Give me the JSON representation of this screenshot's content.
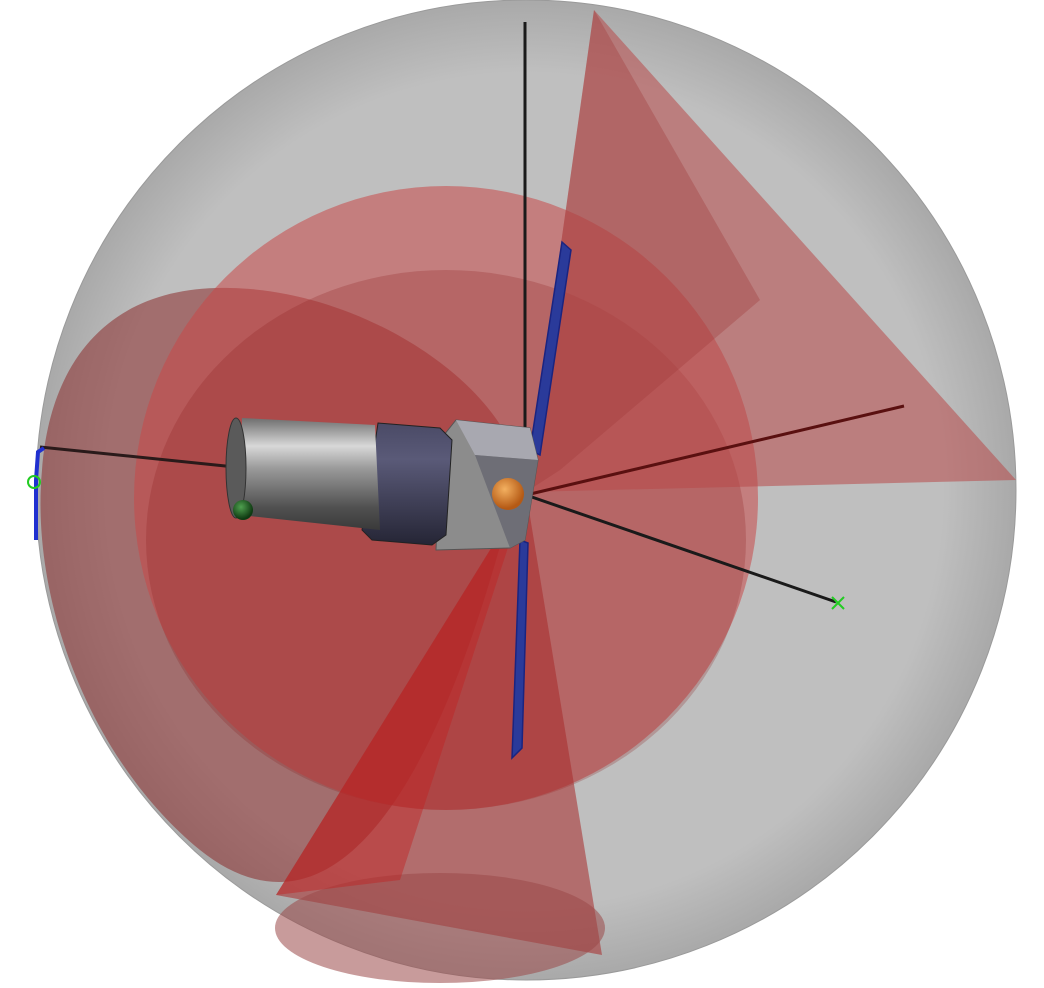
{
  "scene": {
    "background": "#ffffff",
    "colors": {
      "keep_out_sphere": "#a8a8a8",
      "sphere_edge": "#9a9a9a",
      "cone_red": "#b03030",
      "cone_red_light": "#e06060",
      "cone_red_dark": "#8a2020",
      "body_gray": "#8c8c8c",
      "body_dark": "#55555f",
      "collar_navy": "#3a3a55",
      "solar_panel": "#2a3a9a",
      "axis_line": "#1a1a1a",
      "marker_green": "#22cc22",
      "sun_orange": "#d97a2a",
      "bracket_blue": "#2030d0"
    },
    "icons": {
      "axis_x_marker": "x-marker-icon",
      "axis_circle_marker": "circle-marker-icon",
      "sun_marker": "sun-icon"
    }
  }
}
